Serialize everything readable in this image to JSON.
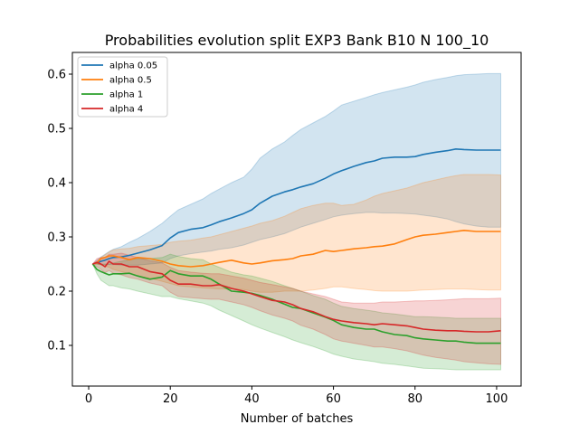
{
  "chart_data": {
    "type": "line",
    "title": "Probabilities evolution split EXP3 Bank B10 N 100_10",
    "xlabel": "Number of batches",
    "ylabel": "",
    "xlim": [
      -4,
      106
    ],
    "ylim": [
      0.025,
      0.64
    ],
    "xticks": [
      0,
      20,
      40,
      60,
      80,
      100
    ],
    "xtick_labels": [
      "0",
      "20",
      "40",
      "60",
      "80",
      "100"
    ],
    "yticks": [
      0.1,
      0.2,
      0.3,
      0.4,
      0.5,
      0.6
    ],
    "ytick_labels": [
      "0.1",
      "0.2",
      "0.3",
      "0.4",
      "0.5",
      "0.6"
    ],
    "grid": false,
    "legend_position": "top-left",
    "x": [
      1,
      2,
      3,
      4,
      5,
      6,
      8,
      10,
      12,
      15,
      18,
      20,
      22,
      25,
      28,
      30,
      32,
      35,
      38,
      40,
      42,
      45,
      48,
      50,
      52,
      55,
      58,
      60,
      62,
      65,
      68,
      70,
      72,
      75,
      78,
      80,
      82,
      85,
      88,
      90,
      92,
      95,
      98,
      101
    ],
    "series": [
      {
        "name": "alpha 0.05",
        "color": "#1f77b4",
        "values": [
          0.25,
          0.252,
          0.255,
          0.257,
          0.26,
          0.262,
          0.263,
          0.266,
          0.27,
          0.276,
          0.284,
          0.298,
          0.308,
          0.314,
          0.317,
          0.322,
          0.328,
          0.335,
          0.343,
          0.35,
          0.362,
          0.375,
          0.383,
          0.387,
          0.392,
          0.398,
          0.408,
          0.416,
          0.422,
          0.43,
          0.437,
          0.44,
          0.445,
          0.447,
          0.447,
          0.448,
          0.452,
          0.456,
          0.459,
          0.462,
          0.461,
          0.46,
          0.46,
          0.46
        ],
        "upper": [
          0.25,
          0.257,
          0.263,
          0.268,
          0.273,
          0.277,
          0.282,
          0.29,
          0.297,
          0.31,
          0.325,
          0.338,
          0.35,
          0.36,
          0.37,
          0.38,
          0.388,
          0.4,
          0.41,
          0.425,
          0.445,
          0.462,
          0.475,
          0.487,
          0.498,
          0.51,
          0.522,
          0.532,
          0.543,
          0.55,
          0.557,
          0.562,
          0.566,
          0.571,
          0.576,
          0.58,
          0.585,
          0.59,
          0.594,
          0.597,
          0.599,
          0.6,
          0.601,
          0.601
        ],
        "lower": [
          0.25,
          0.25,
          0.249,
          0.249,
          0.249,
          0.249,
          0.248,
          0.248,
          0.248,
          0.25,
          0.252,
          0.26,
          0.265,
          0.269,
          0.272,
          0.274,
          0.277,
          0.28,
          0.285,
          0.29,
          0.295,
          0.3,
          0.306,
          0.312,
          0.318,
          0.325,
          0.332,
          0.337,
          0.34,
          0.343,
          0.345,
          0.345,
          0.344,
          0.344,
          0.343,
          0.342,
          0.34,
          0.337,
          0.333,
          0.328,
          0.324,
          0.32,
          0.318,
          0.318
        ]
      },
      {
        "name": "alpha 0.5",
        "color": "#ff7f0e",
        "values": [
          0.25,
          0.252,
          0.26,
          0.262,
          0.265,
          0.265,
          0.262,
          0.258,
          0.262,
          0.26,
          0.255,
          0.25,
          0.247,
          0.245,
          0.247,
          0.25,
          0.253,
          0.257,
          0.252,
          0.25,
          0.252,
          0.256,
          0.258,
          0.26,
          0.265,
          0.268,
          0.275,
          0.273,
          0.275,
          0.278,
          0.28,
          0.282,
          0.283,
          0.287,
          0.295,
          0.3,
          0.303,
          0.305,
          0.308,
          0.31,
          0.312,
          0.31,
          0.31,
          0.31
        ],
        "upper": [
          0.25,
          0.255,
          0.262,
          0.267,
          0.272,
          0.276,
          0.278,
          0.279,
          0.282,
          0.284,
          0.286,
          0.29,
          0.292,
          0.294,
          0.298,
          0.3,
          0.304,
          0.31,
          0.316,
          0.32,
          0.325,
          0.33,
          0.338,
          0.345,
          0.352,
          0.358,
          0.362,
          0.362,
          0.358,
          0.36,
          0.368,
          0.375,
          0.38,
          0.385,
          0.39,
          0.395,
          0.4,
          0.405,
          0.41,
          0.413,
          0.415,
          0.415,
          0.415,
          0.414
        ],
        "lower": [
          0.25,
          0.25,
          0.248,
          0.246,
          0.244,
          0.24,
          0.236,
          0.232,
          0.228,
          0.224,
          0.218,
          0.214,
          0.21,
          0.208,
          0.206,
          0.205,
          0.204,
          0.204,
          0.203,
          0.2,
          0.198,
          0.198,
          0.2,
          0.2,
          0.2,
          0.202,
          0.205,
          0.208,
          0.208,
          0.205,
          0.203,
          0.201,
          0.2,
          0.2,
          0.2,
          0.201,
          0.202,
          0.203,
          0.204,
          0.204,
          0.204,
          0.203,
          0.202,
          0.202
        ]
      },
      {
        "name": "alpha 1",
        "color": "#2ca02c",
        "values": [
          0.25,
          0.24,
          0.236,
          0.233,
          0.23,
          0.232,
          0.232,
          0.233,
          0.228,
          0.222,
          0.226,
          0.238,
          0.232,
          0.228,
          0.228,
          0.222,
          0.213,
          0.2,
          0.198,
          0.196,
          0.192,
          0.185,
          0.176,
          0.17,
          0.168,
          0.16,
          0.152,
          0.146,
          0.138,
          0.133,
          0.13,
          0.13,
          0.125,
          0.12,
          0.118,
          0.114,
          0.112,
          0.11,
          0.108,
          0.108,
          0.106,
          0.104,
          0.104,
          0.104
        ],
        "upper": [
          0.25,
          0.25,
          0.25,
          0.25,
          0.25,
          0.252,
          0.255,
          0.258,
          0.26,
          0.26,
          0.262,
          0.268,
          0.264,
          0.26,
          0.258,
          0.25,
          0.244,
          0.235,
          0.23,
          0.228,
          0.224,
          0.218,
          0.21,
          0.205,
          0.2,
          0.192,
          0.185,
          0.178,
          0.172,
          0.168,
          0.165,
          0.163,
          0.16,
          0.158,
          0.155,
          0.153,
          0.153,
          0.152,
          0.151,
          0.15,
          0.15,
          0.15,
          0.15,
          0.15
        ],
        "lower": [
          0.25,
          0.232,
          0.22,
          0.215,
          0.21,
          0.21,
          0.206,
          0.204,
          0.2,
          0.195,
          0.19,
          0.19,
          0.186,
          0.182,
          0.178,
          0.173,
          0.165,
          0.155,
          0.145,
          0.138,
          0.132,
          0.124,
          0.116,
          0.11,
          0.105,
          0.098,
          0.09,
          0.084,
          0.08,
          0.075,
          0.072,
          0.07,
          0.067,
          0.065,
          0.062,
          0.06,
          0.058,
          0.057,
          0.056,
          0.055,
          0.055,
          0.055,
          0.055,
          0.055
        ]
      },
      {
        "name": "alpha 4",
        "color": "#d62728",
        "values": [
          0.25,
          0.253,
          0.25,
          0.245,
          0.255,
          0.25,
          0.25,
          0.245,
          0.245,
          0.236,
          0.232,
          0.22,
          0.213,
          0.213,
          0.21,
          0.21,
          0.212,
          0.205,
          0.2,
          0.195,
          0.19,
          0.183,
          0.18,
          0.175,
          0.168,
          0.162,
          0.153,
          0.148,
          0.145,
          0.142,
          0.14,
          0.138,
          0.14,
          0.138,
          0.136,
          0.133,
          0.13,
          0.128,
          0.127,
          0.127,
          0.126,
          0.125,
          0.125,
          0.127
        ],
        "upper": [
          0.25,
          0.26,
          0.262,
          0.262,
          0.268,
          0.268,
          0.27,
          0.266,
          0.262,
          0.256,
          0.252,
          0.244,
          0.238,
          0.235,
          0.233,
          0.232,
          0.232,
          0.228,
          0.224,
          0.22,
          0.216,
          0.212,
          0.208,
          0.205,
          0.2,
          0.195,
          0.19,
          0.185,
          0.18,
          0.178,
          0.178,
          0.178,
          0.18,
          0.18,
          0.181,
          0.182,
          0.182,
          0.183,
          0.184,
          0.185,
          0.186,
          0.186,
          0.186,
          0.187
        ],
        "lower": [
          0.25,
          0.245,
          0.24,
          0.234,
          0.238,
          0.233,
          0.23,
          0.225,
          0.222,
          0.215,
          0.21,
          0.198,
          0.19,
          0.188,
          0.186,
          0.185,
          0.185,
          0.18,
          0.175,
          0.17,
          0.164,
          0.156,
          0.15,
          0.145,
          0.137,
          0.13,
          0.12,
          0.112,
          0.108,
          0.104,
          0.1,
          0.097,
          0.097,
          0.094,
          0.09,
          0.086,
          0.082,
          0.078,
          0.075,
          0.073,
          0.07,
          0.068,
          0.066,
          0.065
        ]
      }
    ]
  }
}
